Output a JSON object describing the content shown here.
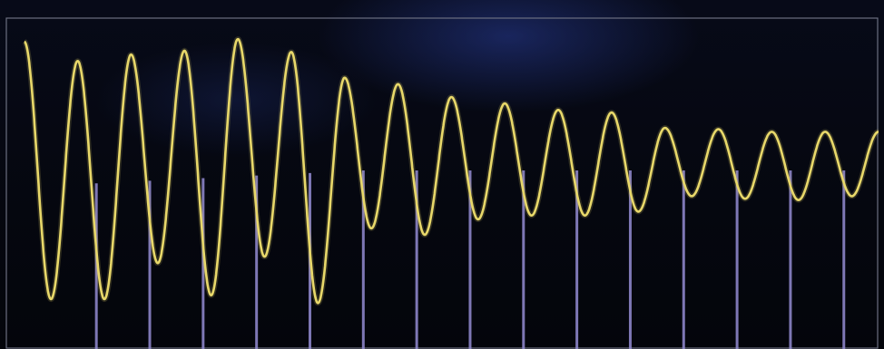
{
  "colors": {
    "background": "#05070f",
    "frame": "#6b6f80",
    "signal": "#e8d86a",
    "sample": "#8c84c8"
  },
  "chart_data": {
    "type": "line",
    "title": "",
    "xlabel": "",
    "ylabel": "",
    "grid": false,
    "legend": "none",
    "xlim": [
      0,
      16.2
    ],
    "ylim": [
      -1.2,
      1.2
    ],
    "series": [
      {
        "kind": "sine-wave",
        "color": "#e8d86a",
        "cycles": 16,
        "peaks": [
          1.0,
          0.85,
          0.9,
          0.93,
          1.02,
          0.92,
          0.72,
          0.67,
          0.57,
          0.52,
          0.47,
          0.45,
          0.33,
          0.32,
          0.3,
          0.3
        ],
        "troughs": [
          -1.0,
          -1.0,
          -0.72,
          -0.97,
          -0.67,
          -1.03,
          -0.45,
          -0.5,
          -0.38,
          -0.35,
          -0.35,
          -0.32,
          -0.2,
          -0.22,
          -0.23,
          -0.2
        ]
      },
      {
        "kind": "sample-stems",
        "color": "#8c84c8",
        "x": [
          1.55,
          2.55,
          3.55,
          4.55,
          5.55,
          6.55,
          7.55,
          8.55,
          9.55,
          10.55,
          11.55,
          12.55,
          13.55,
          14.55,
          15.55
        ],
        "top": [
          -0.1,
          -0.08,
          -0.06,
          -0.04,
          -0.02,
          0.0,
          0.0,
          0.0,
          0.0,
          0.0,
          0.0,
          0.0,
          0.0,
          0.0,
          0.0
        ]
      }
    ]
  }
}
